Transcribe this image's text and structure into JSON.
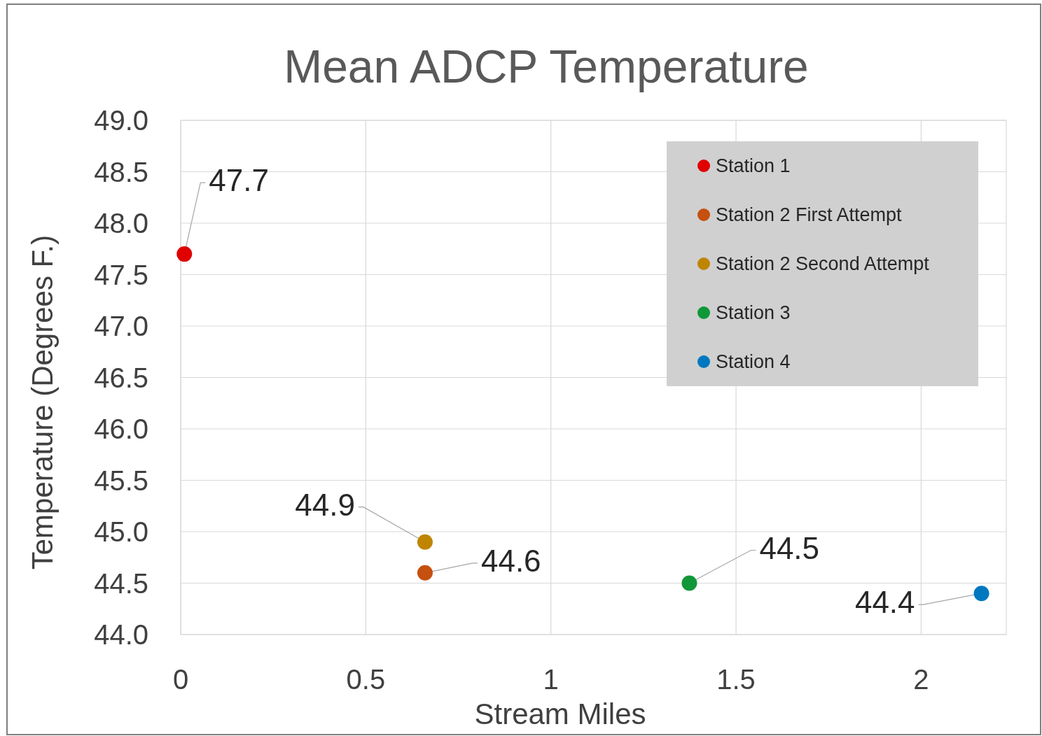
{
  "chart_data": {
    "type": "scatter",
    "title": "Mean ADCP Temperature",
    "xlabel": "Stream Miles",
    "ylabel": "Temperature (Degrees F.)",
    "xlim": [
      0,
      2.23
    ],
    "xticks": [
      0,
      0.5,
      1,
      1.5,
      2
    ],
    "ylim": [
      44,
      49
    ],
    "yticks": [
      {
        "value": 44,
        "label": "44.0"
      },
      {
        "value": 44.5,
        "label": "44.5"
      },
      {
        "value": 45,
        "label": "45.0"
      },
      {
        "value": 45.5,
        "label": "45.5"
      },
      {
        "value": 46,
        "label": "46.0"
      },
      {
        "value": 46.5,
        "label": "46.5"
      },
      {
        "value": 47,
        "label": "47.0"
      },
      {
        "value": 47.5,
        "label": "47.5"
      },
      {
        "value": 48,
        "label": "48.0"
      },
      {
        "value": 48.5,
        "label": "48.5"
      },
      {
        "value": 49,
        "label": "49.0"
      }
    ],
    "grid": true,
    "legend": "top right",
    "marker": "circle",
    "data_labels": true,
    "series": [
      {
        "name": "Station 1",
        "color": "#e00000",
        "x": [
          0.01
        ],
        "values": [
          47.7
        ]
      },
      {
        "name": "Station 2 First Attempt",
        "color": "#c5500f",
        "x": [
          0.66
        ],
        "values": [
          44.6
        ]
      },
      {
        "name": "Station 2 Second Attempt",
        "color": "#bf8500",
        "x": [
          0.66
        ],
        "values": [
          44.9
        ]
      },
      {
        "name": "Station 3",
        "color": "#109838",
        "x": [
          1.374
        ],
        "values": [
          44.5
        ]
      },
      {
        "name": "Station 4",
        "color": "#0078c0",
        "x": [
          2.163
        ],
        "values": [
          44.4
        ]
      }
    ]
  }
}
